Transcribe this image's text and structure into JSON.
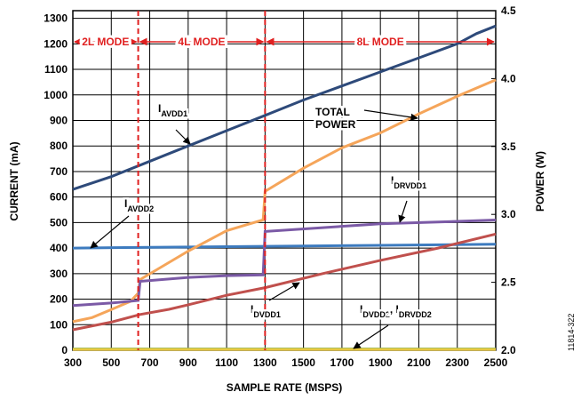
{
  "chart_data": {
    "type": "line",
    "xlabel": "SAMPLE RATE (MSPS)",
    "ylabel": "CURRENT (mA)",
    "y2label": "POWER (W)",
    "xlim": [
      300,
      2500
    ],
    "xticks": [
      300,
      500,
      700,
      900,
      1100,
      1300,
      1500,
      1700,
      1900,
      2100,
      2300,
      2500
    ],
    "ylim": [
      0,
      1330
    ],
    "yticks": [
      0,
      100,
      200,
      300,
      400,
      500,
      600,
      700,
      800,
      900,
      1000,
      1100,
      1200,
      1300
    ],
    "y2lim": [
      2.0,
      4.5
    ],
    "y2ticks": [
      {
        "value": 2.0,
        "label": "2.0"
      },
      2.5,
      {
        "value": 3.0,
        "label": "3.0"
      },
      3.5,
      {
        "value": 4.0,
        "label": "4.0"
      },
      4.5
    ],
    "grid": true,
    "modes": [
      {
        "label": "2L MODE",
        "start": 300,
        "end": 640
      },
      {
        "label": "4L MODE",
        "start": 640,
        "end": 1300
      },
      {
        "label": "8L MODE",
        "start": 1300,
        "end": 2500
      }
    ],
    "series": [
      {
        "color": "#2e4a7a",
        "x": [
          300,
          500,
          650,
          900,
          1100,
          1300,
          1500,
          1700,
          1900,
          2100,
          2300,
          2400,
          2500
        ],
        "values": [
          630,
          680,
          725,
          800,
          860,
          920,
          980,
          1035,
          1090,
          1145,
          1200,
          1240,
          1270
        ]
      },
      {
        "color": "#3d7bbf",
        "x": [
          300,
          700,
          1300,
          1900,
          2500
        ],
        "values": [
          400,
          403,
          407,
          411,
          415
        ]
      },
      {
        "color": "#f5a55a",
        "axis": "y2",
        "x": [
          300,
          400,
          500,
          600,
          640,
          650,
          900,
          1100,
          1290,
          1300,
          1500,
          1700,
          1900,
          2100,
          2300,
          2500
        ],
        "values": [
          2.21,
          2.24,
          2.3,
          2.36,
          2.42,
          2.52,
          2.73,
          2.88,
          2.96,
          3.17,
          3.34,
          3.49,
          3.6,
          3.74,
          3.87,
          3.99
        ]
      },
      {
        "color": "#7b5aa6",
        "x": [
          300,
          500,
          640,
          650,
          900,
          1100,
          1290,
          1300,
          1600,
          1900,
          2200,
          2500
        ],
        "values": [
          175,
          185,
          195,
          270,
          285,
          292,
          295,
          465,
          480,
          495,
          502,
          510
        ]
      },
      {
        "color": "#c0504d",
        "x": [
          300,
          500,
          650,
          800,
          900,
          1100,
          1300,
          1600,
          1900,
          2200,
          2500
        ],
        "values": [
          80,
          110,
          140,
          160,
          178,
          215,
          245,
          300,
          352,
          400,
          455
        ]
      },
      {
        "color": "#6aa84f",
        "x": [
          300,
          2500
        ],
        "values": [
          5,
          5
        ]
      },
      {
        "color": "#e8c840",
        "x": [
          300,
          2500
        ],
        "values": [
          3,
          3
        ]
      }
    ],
    "annotations": [
      {
        "parts": [
          {
            "text": "I"
          },
          {
            "sub": "AVDD1"
          }
        ]
      },
      {
        "lines": [
          "TOTAL",
          "POWER"
        ]
      },
      {
        "parts": [
          {
            "text": "I"
          },
          {
            "sub": "AVDD2"
          }
        ]
      },
      {
        "parts": [
          {
            "text": "I"
          },
          {
            "sub": "DRVDD1"
          }
        ]
      },
      {
        "parts": [
          {
            "text": "I"
          },
          {
            "sub": "DVDD1"
          }
        ]
      },
      {
        "parts": [
          {
            "text": "I"
          },
          {
            "sub": "DVDD2"
          },
          {
            "text": ", I"
          },
          {
            "sub": "DRVDD2"
          }
        ]
      }
    ]
  },
  "figure_id": "11814-322"
}
